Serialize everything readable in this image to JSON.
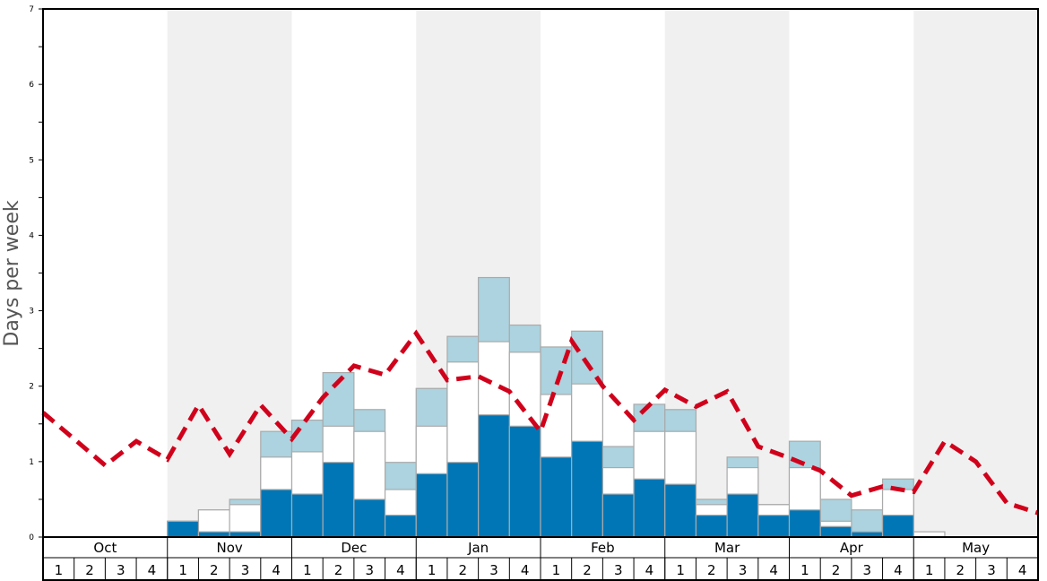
{
  "chart_data": {
    "type": "bar",
    "title": "",
    "xlabel": "",
    "ylabel": "Days per week",
    "ylim": [
      0,
      7
    ],
    "yticks": [
      "0",
      "1",
      "2",
      "3",
      "4",
      "5",
      "6",
      "7"
    ],
    "months": [
      "Oct",
      "Nov",
      "Dec",
      "Jan",
      "Feb",
      "Mar",
      "Apr",
      "May"
    ],
    "week_labels": [
      "1",
      "2",
      "3",
      "4"
    ],
    "shaded_months": [
      "Nov",
      "Jan",
      "Mar",
      "May"
    ],
    "stacked_cumulative": true,
    "series": [
      {
        "name": "dark",
        "color": "#0076b6",
        "values": [
          0,
          0,
          0,
          0,
          0.21,
          0.07,
          0.07,
          0.63,
          0.57,
          0.99,
          0.5,
          0.29,
          0.84,
          0.99,
          1.62,
          1.47,
          1.06,
          1.27,
          0.57,
          0.77,
          0.7,
          0.29,
          0.57,
          0.29,
          0.36,
          0.14,
          0.07,
          0.29,
          0,
          0,
          0,
          0
        ]
      },
      {
        "name": "white",
        "color": "#ffffff",
        "values": [
          0,
          0,
          0,
          0,
          0.21,
          0.36,
          0.43,
          1.06,
          1.13,
          1.47,
          1.4,
          0.63,
          1.47,
          2.32,
          2.59,
          2.45,
          1.89,
          2.03,
          0.92,
          1.4,
          1.4,
          0.43,
          0.92,
          0.43,
          0.92,
          0.21,
          0.07,
          0.63,
          0.07,
          0,
          0,
          0
        ]
      },
      {
        "name": "light",
        "color": "#acd3df",
        "values": [
          0,
          0,
          0,
          0,
          0.21,
          0.36,
          0.5,
          1.4,
          1.55,
          2.18,
          1.69,
          0.99,
          1.97,
          2.66,
          3.44,
          2.81,
          2.52,
          2.73,
          1.2,
          1.76,
          1.69,
          0.5,
          1.06,
          0.43,
          1.27,
          0.5,
          0.36,
          0.77,
          0.07,
          0,
          0,
          0
        ]
      }
    ],
    "line": {
      "name": "average",
      "color": "#d0021b",
      "style": "dashed",
      "values": [
        1.65,
        1.3,
        0.95,
        1.27,
        1.03,
        1.75,
        1.1,
        1.75,
        1.3,
        1.85,
        2.27,
        2.15,
        2.7,
        2.08,
        2.13,
        1.93,
        1.4,
        2.6,
        2.0,
        1.55,
        1.95,
        1.73,
        1.93,
        1.2,
        1.05,
        0.88,
        0.55,
        0.67,
        0.6,
        1.27,
        1.0,
        0.45,
        0.32
      ]
    }
  }
}
